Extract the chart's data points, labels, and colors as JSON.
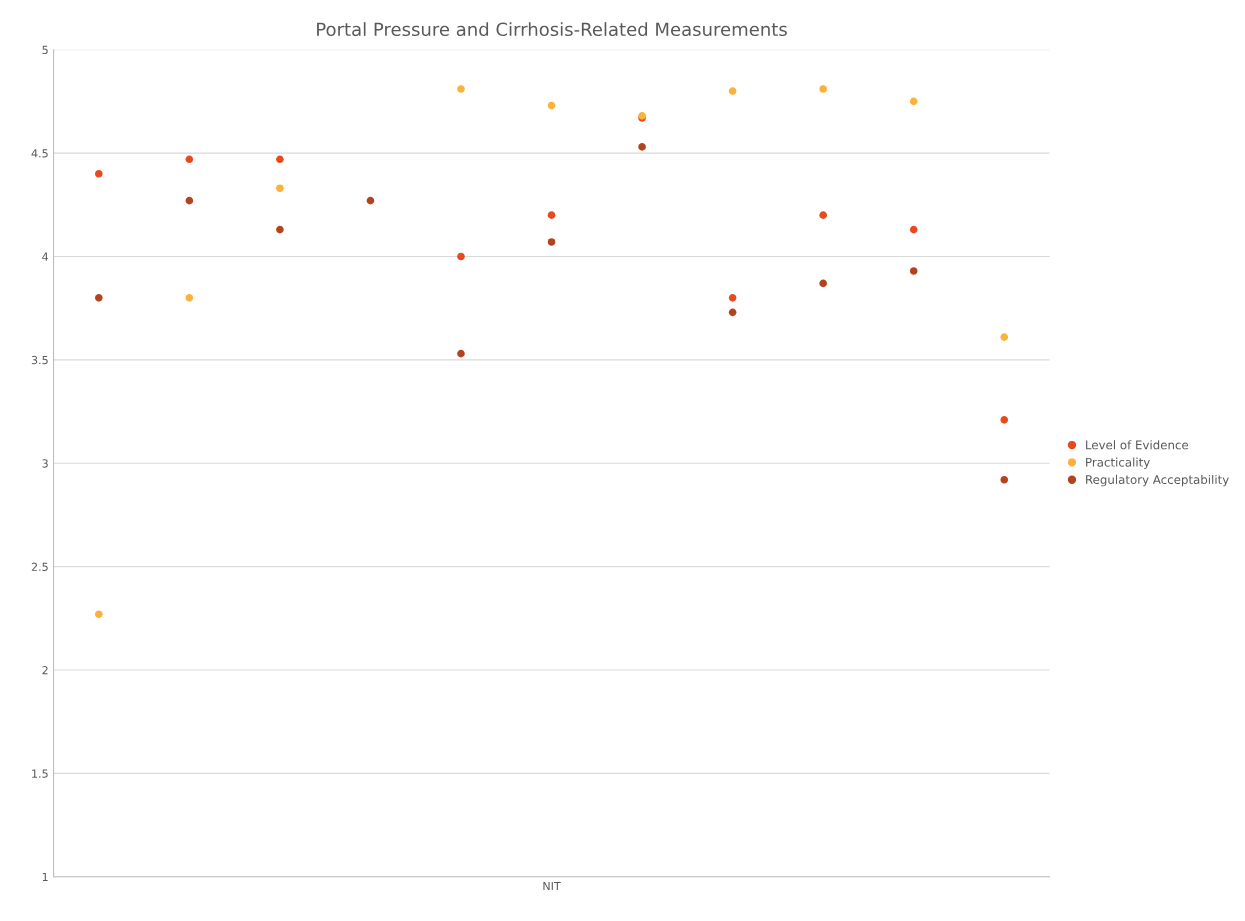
{
  "chart_data": {
    "type": "scatter",
    "title": "Portal Pressure and Cirrhosis-Related Measurements",
    "categories": [
      null,
      null,
      null,
      null,
      null,
      "NIT",
      null,
      null,
      null,
      null,
      null
    ],
    "series": [
      {
        "name": "Level of Evidence",
        "color": "#e8491d",
        "values": [
          4.4,
          4.47,
          4.47,
          null,
          4.0,
          4.2,
          4.67,
          3.8,
          4.2,
          4.13,
          3.21
        ]
      },
      {
        "name": "Practicality",
        "color": "#fbb13c",
        "values": [
          2.27,
          3.8,
          4.33,
          null,
          4.81,
          4.73,
          4.68,
          4.8,
          4.81,
          4.75,
          3.61
        ]
      },
      {
        "name": "Regulatory Acceptability",
        "color": "#b3431f",
        "values": [
          3.8,
          4.27,
          4.13,
          4.27,
          3.53,
          4.07,
          4.53,
          3.73,
          3.87,
          3.93,
          2.92
        ]
      }
    ],
    "ylim": [
      1,
      5
    ],
    "yticks": [
      1,
      1.5,
      2,
      2.5,
      3,
      3.5,
      4,
      4.5,
      5
    ],
    "grid": "y",
    "legend": "right",
    "marker": "circle"
  }
}
